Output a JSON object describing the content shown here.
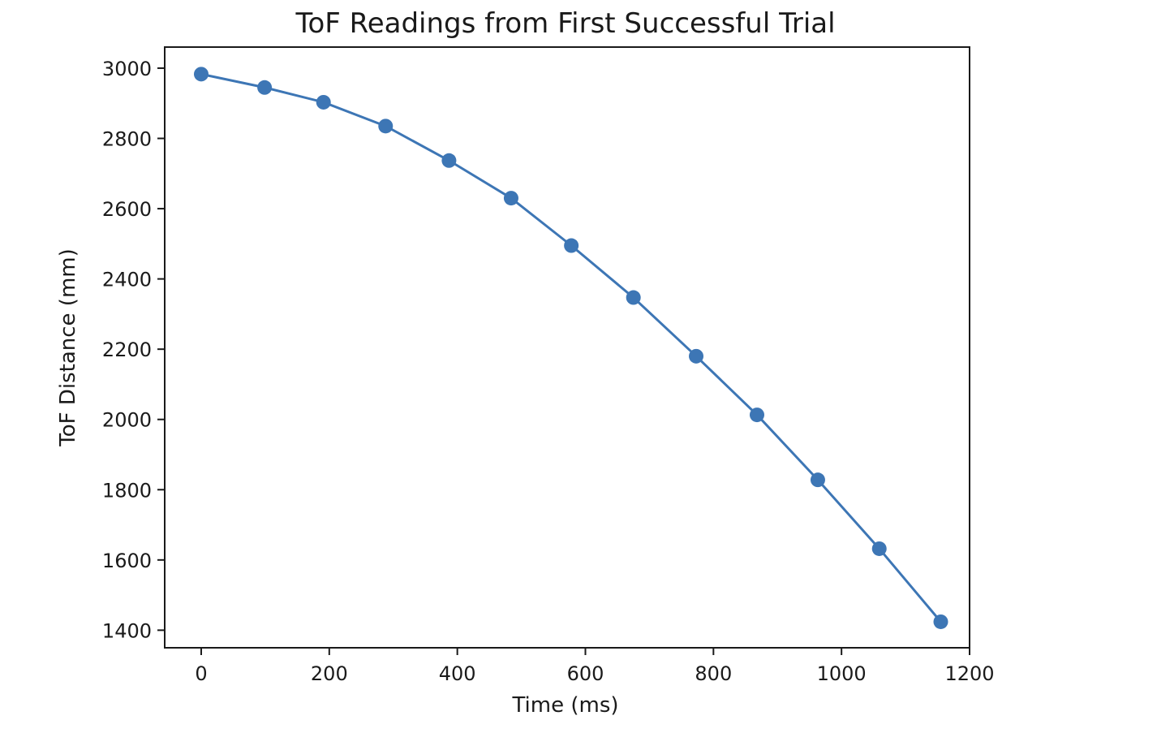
{
  "chart_data": {
    "type": "line",
    "title": "ToF Readings from First Successful Trial",
    "xlabel": "Time (ms)",
    "ylabel": "ToF Distance (mm)",
    "xlim": [
      -57,
      1200
    ],
    "ylim": [
      1350,
      3060
    ],
    "x_ticks": [
      0,
      200,
      400,
      600,
      800,
      1000,
      1200
    ],
    "y_ticks": [
      1400,
      1600,
      1800,
      2000,
      2200,
      2400,
      2600,
      2800,
      3000
    ],
    "grid": false,
    "marker": "circle",
    "series": [
      {
        "color": "#3d76b5",
        "x": [
          0,
          99,
          191,
          288,
          387,
          484,
          578,
          675,
          773,
          868,
          963,
          1059,
          1155
        ],
        "y": [
          2983,
          2945,
          2903,
          2835,
          2737,
          2630,
          2495,
          2347,
          2180,
          2013,
          1828,
          1632,
          1424
        ]
      }
    ]
  }
}
